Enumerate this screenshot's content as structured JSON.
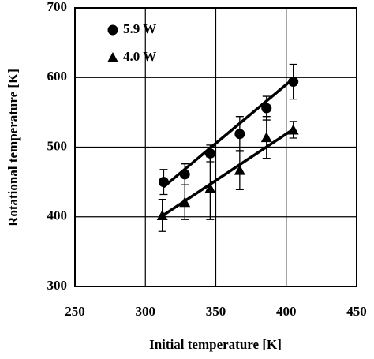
{
  "chart_data": {
    "type": "scatter",
    "x_label": "Initial temperature  [K]",
    "y_label": "Rotational temperature  [K]",
    "xlim": [
      250,
      450
    ],
    "xticks": [
      250,
      300,
      350,
      400,
      450
    ],
    "ylim": [
      300,
      700
    ],
    "yticks": [
      300,
      400,
      500,
      600,
      700
    ],
    "grid": true,
    "legend": "upper left",
    "series": [
      {
        "name": "5.9 W",
        "marker": "circle",
        "color": "#000000",
        "x": [
          313,
          328,
          346,
          367,
          386,
          405
        ],
        "values": [
          450,
          461,
          491,
          519,
          556,
          594
        ],
        "errors": [
          18,
          15,
          12,
          25,
          17,
          25
        ],
        "fit": {
          "x": [
            313,
            406
          ],
          "values": [
            443,
            600
          ]
        }
      },
      {
        "name": "4.0 W",
        "marker": "triangle",
        "color": "#000000",
        "x": [
          312,
          328,
          346,
          367,
          386,
          405
        ],
        "values": [
          402,
          421,
          441,
          467,
          514,
          525
        ],
        "errors": [
          23,
          25,
          45,
          28,
          30,
          12
        ],
        "fit": {
          "x": [
            311,
            406
          ],
          "values": [
            400,
            527
          ]
        }
      }
    ]
  }
}
